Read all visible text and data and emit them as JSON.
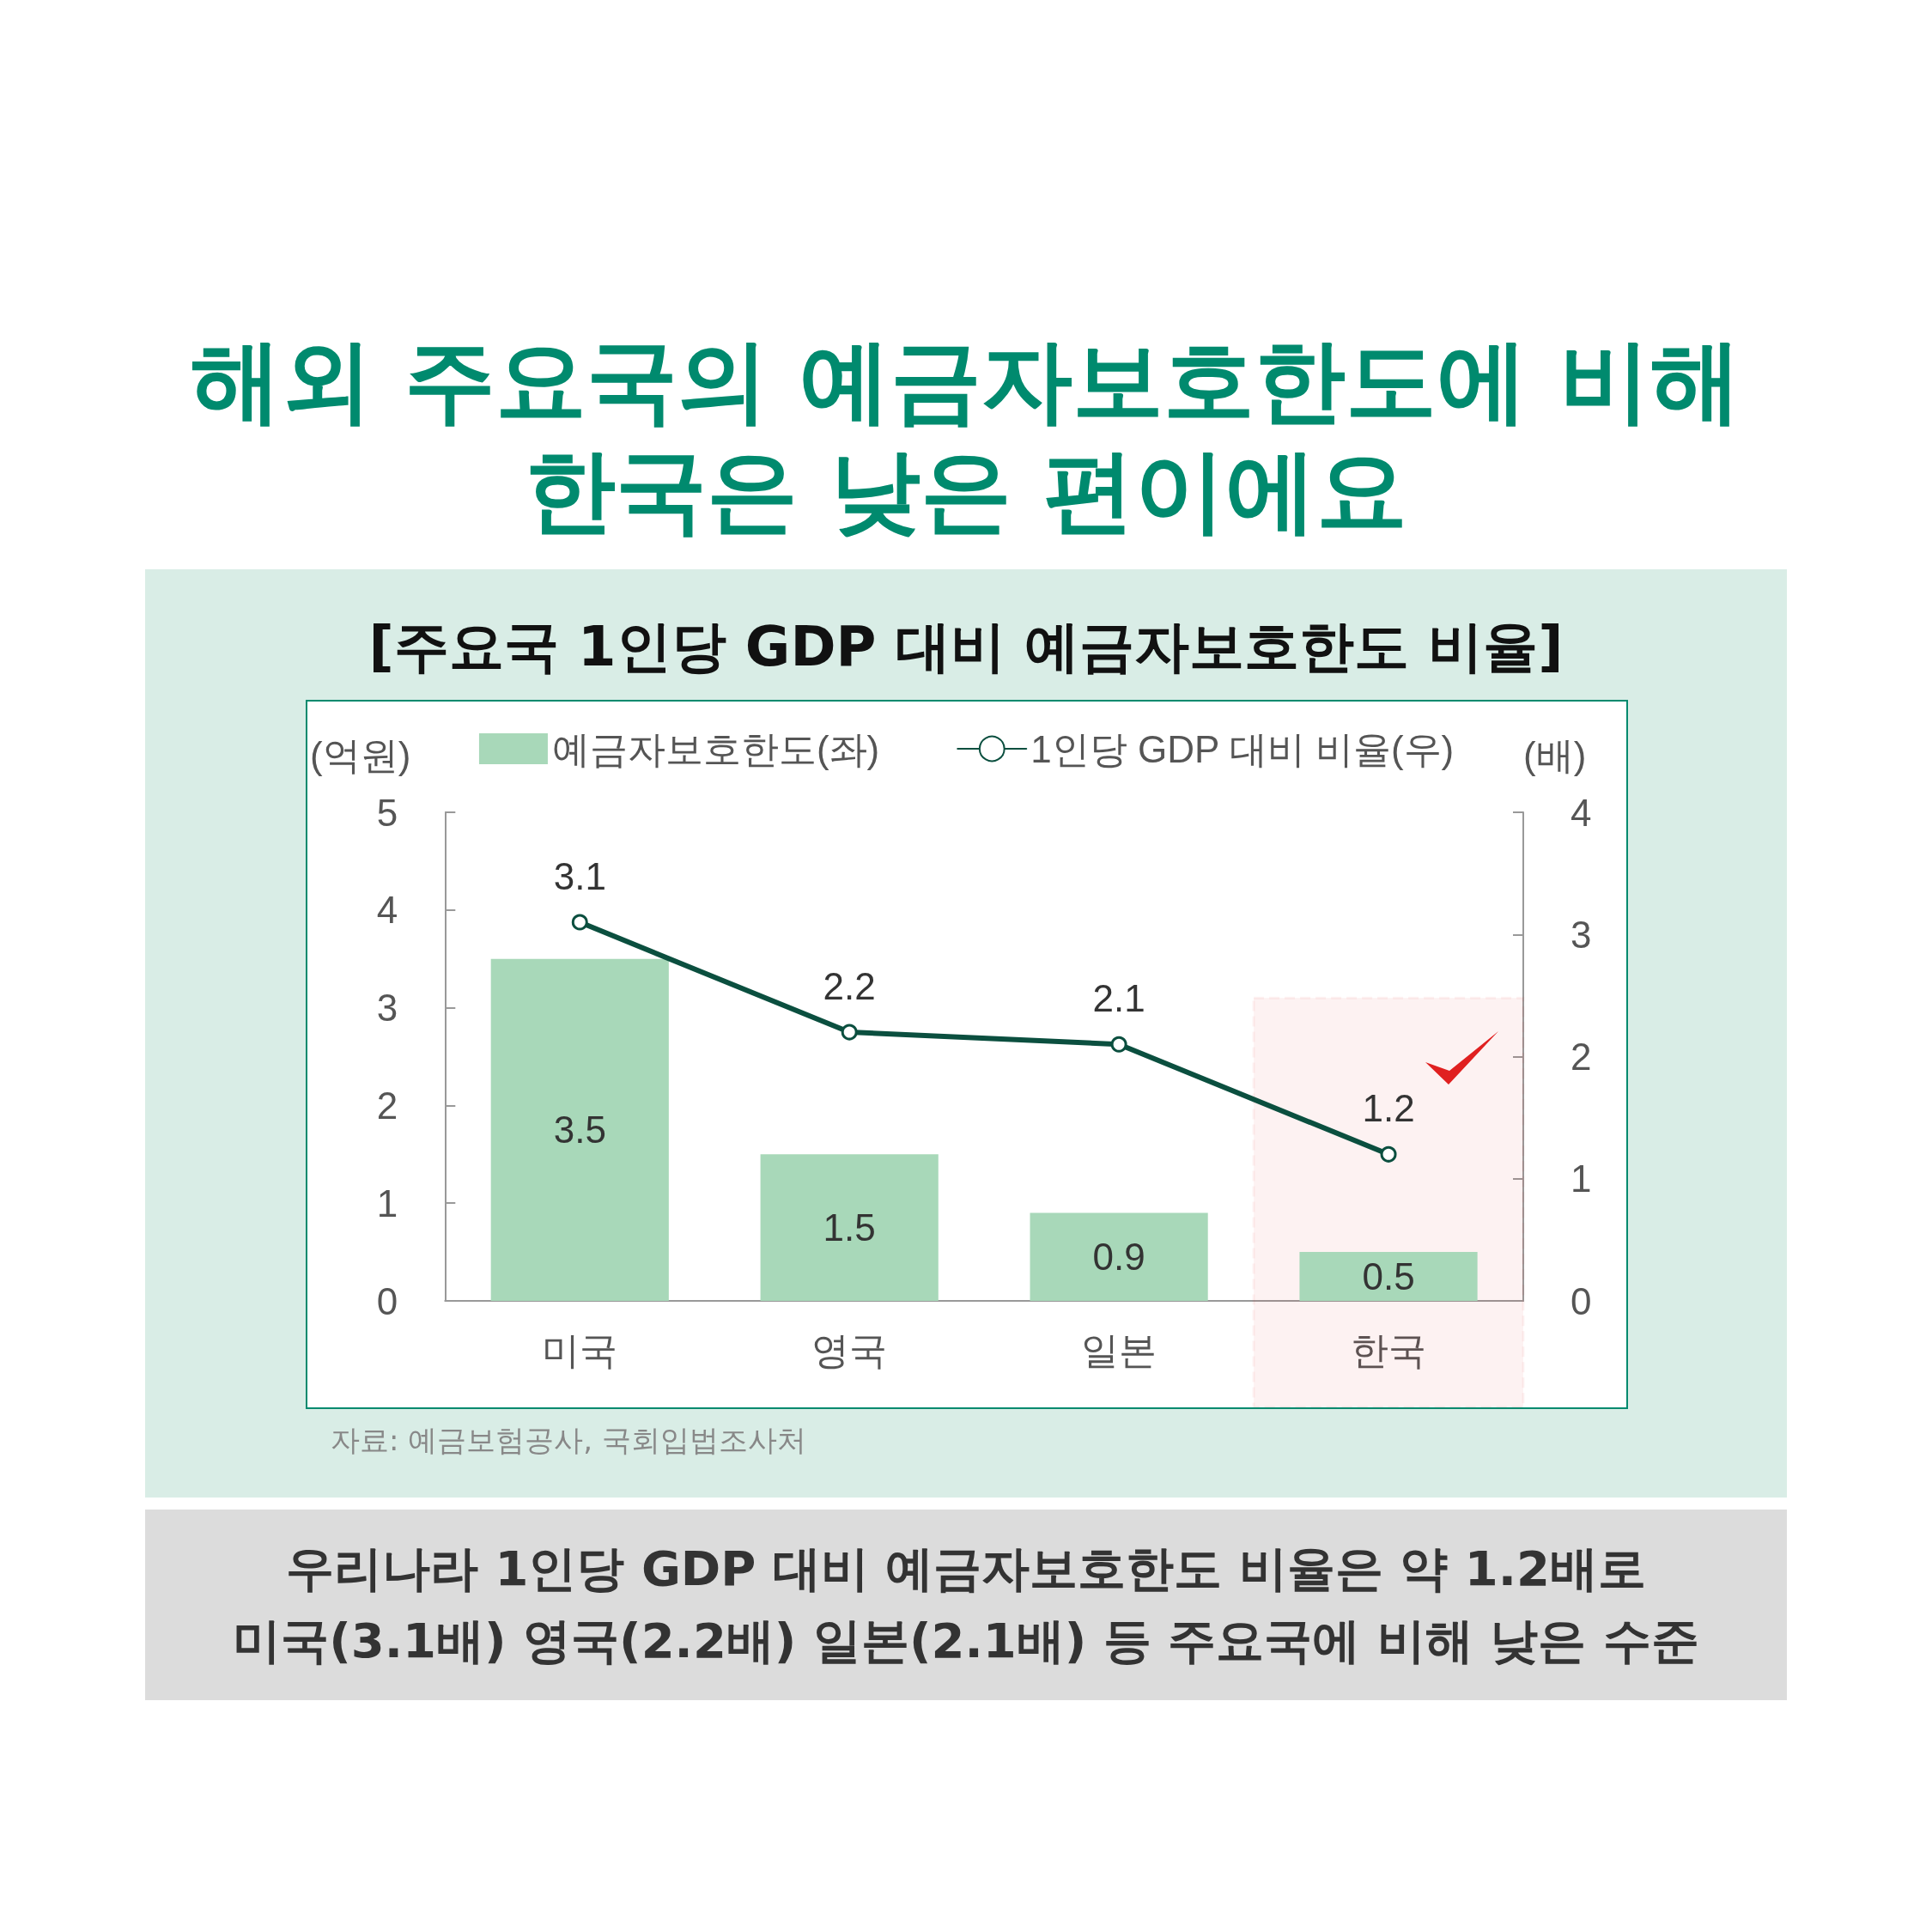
{
  "chart_data": {
    "type": "bar",
    "title": "해외 주요국의 예금자보호한도에 비해\n한국은 낮은 편이에요",
    "subtitle": "[주요국 1인당 GDP 대비 예금자보호한도 비율]",
    "ylabel": "(억원)",
    "y2label": "(배)",
    "categories": [
      "미국",
      "영국",
      "일본",
      "한국"
    ],
    "series": [
      {
        "name": "예금자보호한도(좌)",
        "color": "#a8d8b9",
        "values": [
          3.5,
          1.5,
          0.9,
          0.5
        ]
      },
      {
        "name": "1인당 GDP 대비 비율(우)",
        "type": "line",
        "axis": "y2",
        "color": "#0b4f3f",
        "marker": "circle",
        "values": [
          3.1,
          2.2,
          2.1,
          1.2
        ]
      }
    ],
    "ylim": [
      0,
      5
    ],
    "yticks": [
      0,
      1,
      2,
      3,
      4,
      5
    ],
    "y2lim": [
      0,
      4
    ],
    "y2ticks": [
      0,
      1,
      2,
      3,
      4
    ],
    "bands": [
      {
        "axis": "x",
        "from": "한국",
        "to": "한국",
        "color": "#e02020"
      }
    ],
    "data_labels": true,
    "legend": "top",
    "grid": false,
    "annotations": [
      "자료: 예금보험공사, 국회입법조사처",
      "우리나라 1인당 GDP 대비 예금자보호한도 비율은 약 1.2배로\n미국(3.1배) 영국(2.2배) 일본(2.1배) 등 주요국에 비해 낮은 수준"
    ]
  }
}
